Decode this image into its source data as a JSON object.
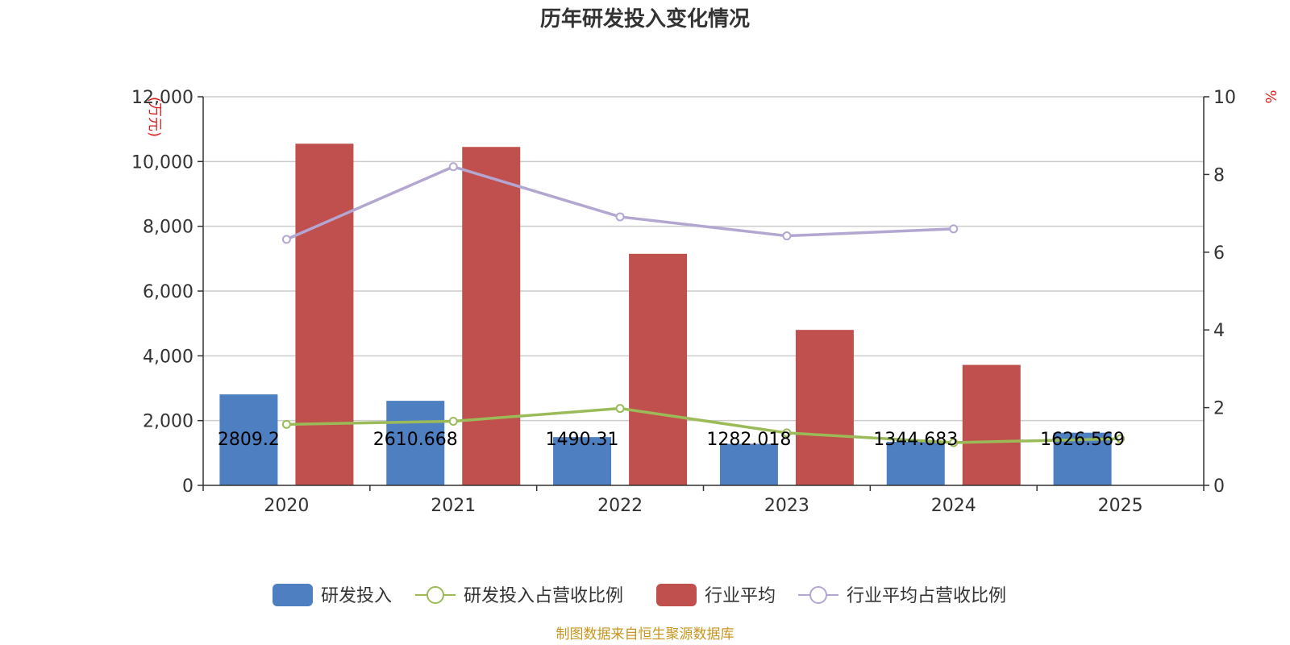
{
  "chart_data": {
    "type": "bar",
    "title": "历年研发投入变化情况",
    "categories": [
      "2020",
      "2021",
      "2022",
      "2023",
      "2024",
      "2025"
    ],
    "y_left": {
      "unit_label": "(万元)",
      "ticks": [
        "0",
        "2,000",
        "4,000",
        "6,000",
        "8,000",
        "10,000",
        "12,000"
      ],
      "ylim": [
        0,
        12000
      ]
    },
    "y_right": {
      "unit_label": "%",
      "ticks": [
        "0",
        "2",
        "4",
        "6",
        "8",
        "10"
      ],
      "ylim": [
        0,
        10
      ]
    },
    "series": [
      {
        "name": "研发投入",
        "type": "bar",
        "axis": "left",
        "color": "#4e7fc0",
        "values": [
          2809.2,
          2610.668,
          1490.31,
          1282.018,
          1344.683,
          1626.569
        ],
        "labels": [
          "2809.2",
          "2610.668",
          "1490.31",
          "1282.018",
          "1344.683",
          "1626.569"
        ]
      },
      {
        "name": "研发投入占营收比例",
        "type": "line",
        "axis": "right",
        "color": "#9bbb59",
        "values": [
          1.57,
          1.65,
          1.98,
          1.35,
          1.1,
          1.2
        ]
      },
      {
        "name": "行业平均",
        "type": "bar",
        "axis": "left",
        "color": "#c0504d",
        "values": [
          10550,
          10450,
          7150,
          4800,
          3720,
          null
        ]
      },
      {
        "name": "行业平均占营收比例",
        "type": "line",
        "axis": "right",
        "color": "#b3a6d1",
        "values": [
          6.33,
          8.2,
          6.91,
          6.42,
          6.6,
          null
        ]
      }
    ],
    "legend_position": "bottom",
    "grid": true
  },
  "source": "制图数据来自恒生聚源数据库"
}
